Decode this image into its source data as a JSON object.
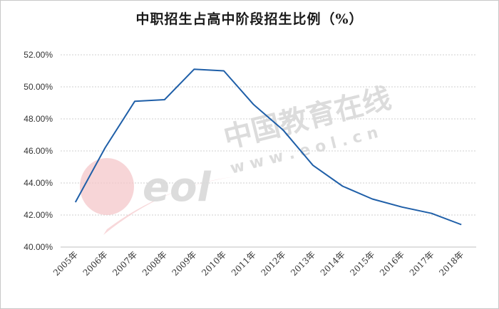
{
  "chart_data": {
    "type": "line",
    "title": "中职招生占高中阶段招生比例（%）",
    "xlabel": "",
    "ylabel": "",
    "categories": [
      "2005年",
      "2006年",
      "2007年",
      "2008年",
      "2009年",
      "2010年",
      "2011年",
      "2012年",
      "2013年",
      "2014年",
      "2015年",
      "2016年",
      "2017年",
      "2018年"
    ],
    "series": [
      {
        "values": [
          42.8,
          46.2,
          49.1,
          49.2,
          51.1,
          51.0,
          48.9,
          47.3,
          45.1,
          43.8,
          43.0,
          42.5,
          42.1,
          41.4
        ]
      }
    ],
    "yticks": [
      "40.00%",
      "42.00%",
      "44.00%",
      "46.00%",
      "48.00%",
      "50.00%",
      "52.00%"
    ],
    "ylim": [
      40,
      52
    ],
    "grid": "horizontal dotted",
    "line_color": "#1f5fa8"
  },
  "watermark": {
    "text": "中国教育在线",
    "url": "w w w . e o l . c n",
    "logo": "eol"
  }
}
